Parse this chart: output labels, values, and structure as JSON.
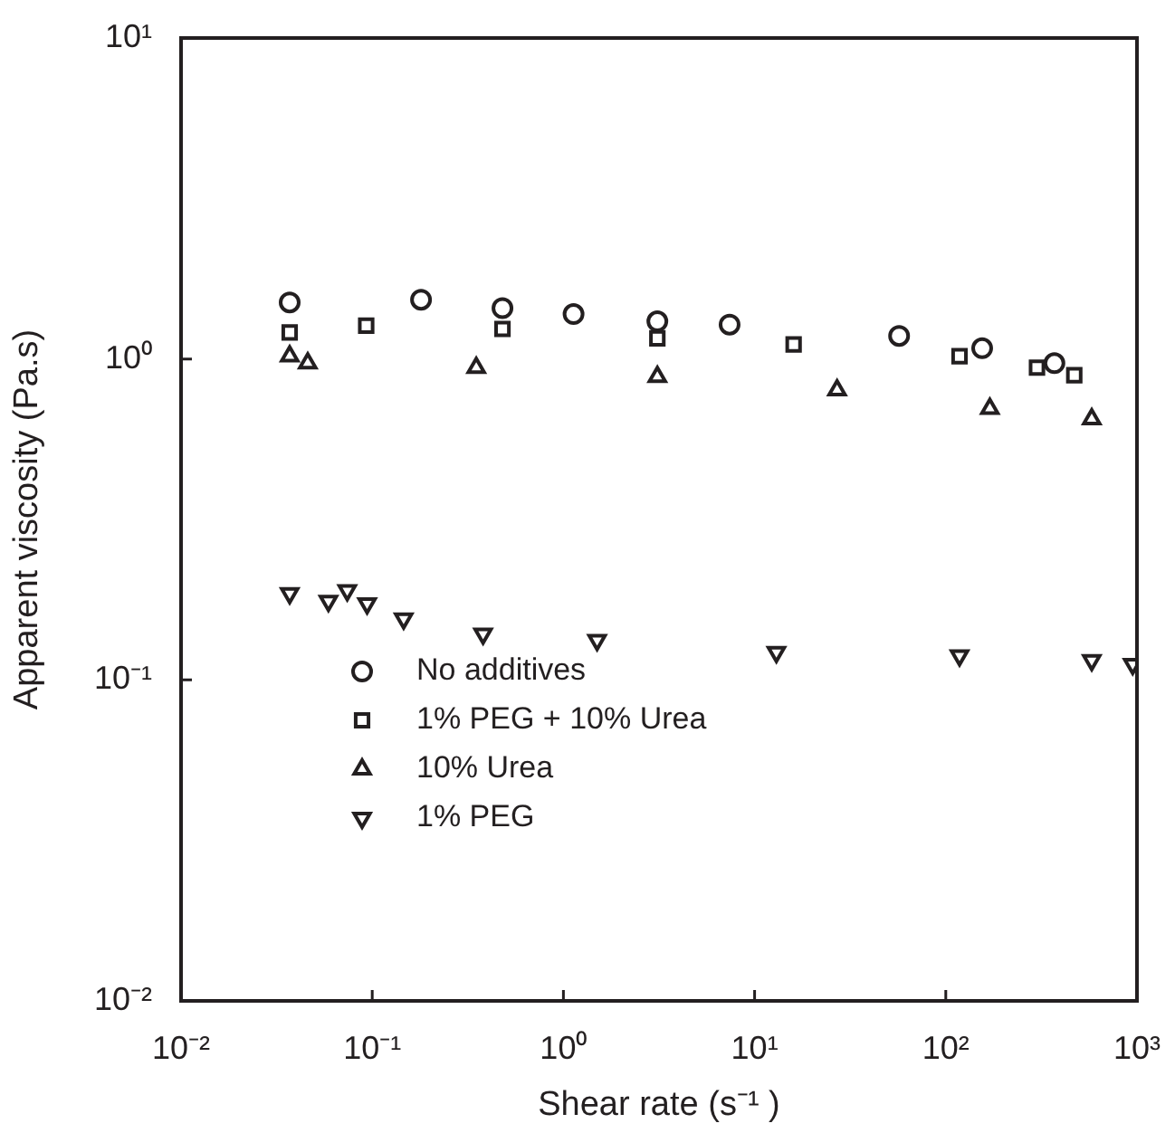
{
  "chart_data": {
    "type": "scatter",
    "xlabel": "Shear rate (s⁻¹ )",
    "ylabel": "Apparent viscosity (Pa.s)",
    "log": "xy",
    "grid": false,
    "legend": "bottom left",
    "xlim": [
      0.01,
      1000
    ],
    "xticks": [
      {
        "value": 0.01,
        "label": "10⁻²"
      },
      {
        "value": 0.1,
        "label": "10⁻¹"
      },
      {
        "value": 1,
        "label": "10⁰"
      },
      {
        "value": 10,
        "label": "10¹"
      },
      {
        "value": 100,
        "label": "10²"
      },
      {
        "value": 1000,
        "label": "10³"
      }
    ],
    "ylim": [
      0.01,
      10
    ],
    "yticks": [
      {
        "value": 0.01,
        "label": "10⁻²"
      },
      {
        "value": 0.1,
        "label": "10⁻¹"
      },
      {
        "value": 1,
        "label": "10⁰"
      },
      {
        "value": 10,
        "label": "10¹"
      }
    ],
    "series": [
      {
        "name": "No additives",
        "color": "#231f20",
        "marker": "circle",
        "x": [
          0.037,
          0.18,
          0.48,
          1.13,
          3.1,
          7.4,
          57,
          155,
          370
        ],
        "values": [
          1.5,
          1.53,
          1.44,
          1.38,
          1.31,
          1.28,
          1.18,
          1.08,
          0.97
        ]
      },
      {
        "name": "1% PEG + 10% Urea",
        "color": "#231f20",
        "marker": "square",
        "x": [
          0.037,
          0.093,
          0.48,
          3.1,
          16,
          118,
          300,
          470
        ],
        "values": [
          1.21,
          1.27,
          1.24,
          1.16,
          1.11,
          1.02,
          0.94,
          0.89
        ]
      },
      {
        "name": "10% Urea",
        "color": "#231f20",
        "marker": "triangle",
        "x": [
          0.037,
          0.046,
          0.35,
          3.1,
          27,
          170,
          580
        ],
        "values": [
          1.02,
          0.97,
          0.94,
          0.88,
          0.8,
          0.7,
          0.65
        ]
      },
      {
        "name": "1% PEG",
        "color": "#231f20",
        "marker": "triangle-down",
        "x": [
          0.037,
          0.059,
          0.074,
          0.094,
          0.146,
          0.38,
          1.5,
          13,
          118,
          580,
          950
        ],
        "values": [
          0.186,
          0.176,
          0.19,
          0.173,
          0.155,
          0.139,
          0.133,
          0.122,
          0.119,
          0.115,
          0.112
        ]
      }
    ]
  }
}
